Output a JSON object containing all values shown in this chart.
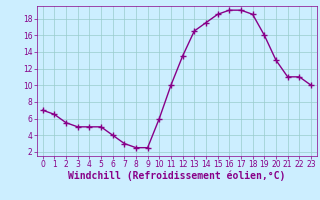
{
  "x": [
    0,
    1,
    2,
    3,
    4,
    5,
    6,
    7,
    8,
    9,
    10,
    11,
    12,
    13,
    14,
    15,
    16,
    17,
    18,
    19,
    20,
    21,
    22,
    23
  ],
  "y": [
    7.0,
    6.5,
    5.5,
    5.0,
    5.0,
    5.0,
    4.0,
    3.0,
    2.5,
    2.5,
    6.0,
    10.0,
    13.5,
    16.5,
    17.5,
    18.5,
    19.0,
    19.0,
    18.5,
    16.0,
    13.0,
    11.0,
    11.0,
    10.0
  ],
  "line_color": "#880088",
  "marker": "+",
  "marker_size": 4,
  "bg_color": "#cceeff",
  "grid_color": "#99cccc",
  "xlabel": "Windchill (Refroidissement éolien,°C)",
  "xlabel_color": "#880088",
  "xlim": [
    -0.5,
    23.5
  ],
  "ylim": [
    1.5,
    19.5
  ],
  "yticks": [
    2,
    4,
    6,
    8,
    10,
    12,
    14,
    16,
    18
  ],
  "xticks": [
    0,
    1,
    2,
    3,
    4,
    5,
    6,
    7,
    8,
    9,
    10,
    11,
    12,
    13,
    14,
    15,
    16,
    17,
    18,
    19,
    20,
    21,
    22,
    23
  ],
  "tick_color": "#880088",
  "tick_fontsize": 5.5,
  "xlabel_fontsize": 7.0,
  "line_width": 1.0
}
